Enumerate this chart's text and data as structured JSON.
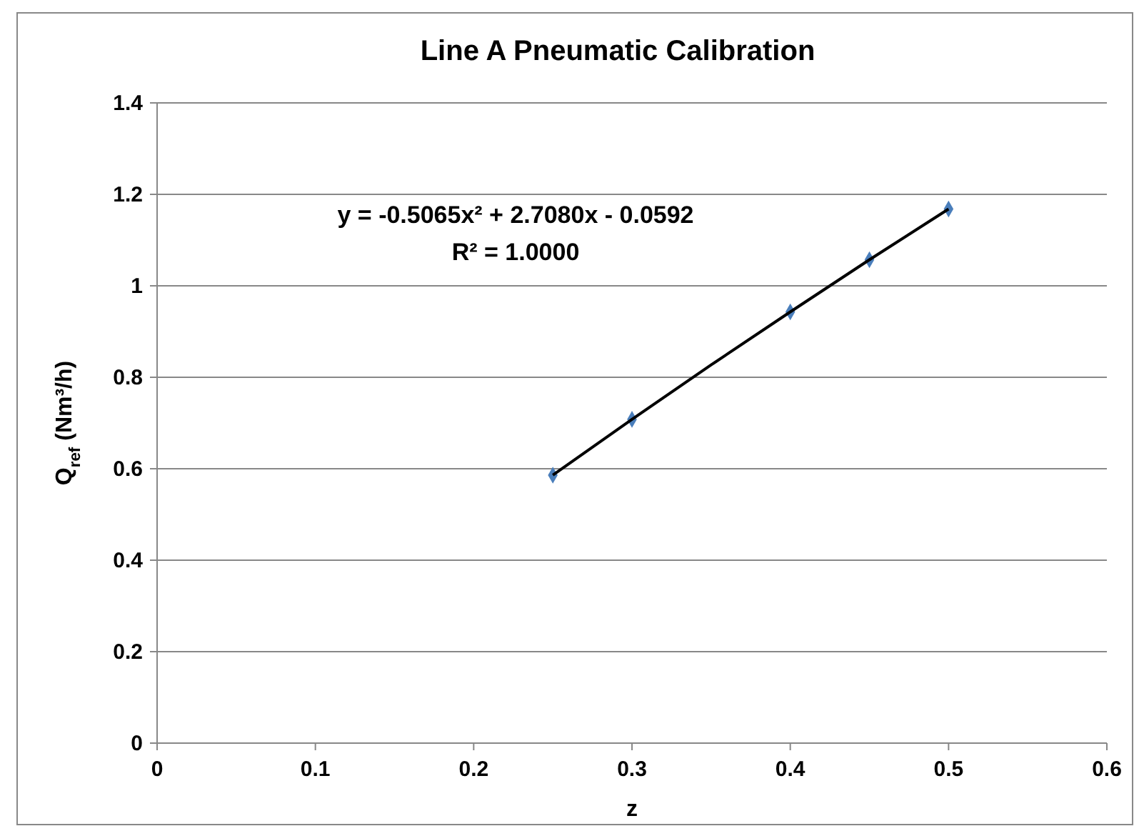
{
  "chart_data": {
    "type": "scatter",
    "title": "Line A Pneumatic Calibration",
    "xlabel": "z",
    "ylabel": "Q$_{ref}$ (Nm³/h)",
    "x": [
      0.25,
      0.3,
      0.4,
      0.45,
      0.5
    ],
    "series": [
      {
        "color": "#4a7ebb",
        "values": [
          0.586,
          0.708,
          0.943,
          1.057,
          1.168
        ]
      },
      {
        "type": "line",
        "color": "#000000",
        "marker": "none",
        "x": [
          0.25,
          0.3,
          0.35,
          0.4,
          0.45,
          0.5
        ],
        "values": [
          0.586,
          0.708,
          0.827,
          0.943,
          1.057,
          1.168
        ]
      }
    ],
    "annotations": [
      "y = -0.5065x² + 2.7080x - 0.0592",
      "R² = 1.0000"
    ],
    "xlim": [
      0,
      0.6
    ],
    "xticks": [
      0,
      0.1,
      0.2,
      0.3,
      0.4,
      0.5,
      0.6
    ],
    "ylim": [
      0,
      1.4
    ],
    "yticks": [
      0,
      0.2,
      0.4,
      0.6,
      0.8,
      1,
      1.2,
      1.4
    ],
    "grid": "y",
    "marker": "diamond"
  }
}
